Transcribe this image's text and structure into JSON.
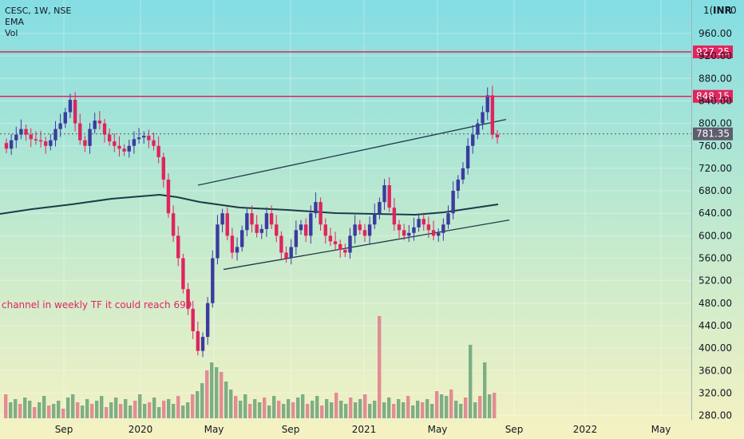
{
  "header": {
    "symbol_line": "CESC, 1W, NSE",
    "ema_label": "EMA",
    "vol_label": "Vol"
  },
  "currency": "INR",
  "currency_top_left": "1(",
  "currency_top_right": "0",
  "annotation": "channel in weekly TF it could reach 699",
  "colors": {
    "up": "#3b3b9f",
    "down": "#e0245e",
    "vol_up": "#6aa27a",
    "vol_down": "#e07a8c",
    "hline": "#e0245e",
    "last_tag": "#5e5e6e",
    "ema": "#1d3a4a",
    "channel": "#1d3a4a"
  },
  "chart_data": {
    "type": "candlestick",
    "timeframe": "1W",
    "exchange": "NSE",
    "y_axis": {
      "ticks": [
        "960.00",
        "920.00",
        "880.00",
        "840.00",
        "800.00",
        "760.00",
        "720.00",
        "680.00",
        "640.00",
        "600.00",
        "560.00",
        "520.00",
        "480.00",
        "440.00",
        "400.00",
        "360.00",
        "320.00",
        "280.00"
      ],
      "range": [
        275,
        1000
      ]
    },
    "x_axis": {
      "ticks": [
        "Sep",
        "2020",
        "May",
        "Sep",
        "2021",
        "May",
        "Sep",
        "2022",
        "May"
      ]
    },
    "horizontal_levels": [
      {
        "label": "927.25",
        "value": 927.25
      },
      {
        "label": "848.15",
        "value": 848.15
      }
    ],
    "last_price": {
      "label": "781.35",
      "value": 781.35
    },
    "channel": {
      "upper": [
        [
          248,
          690
        ],
        [
          634,
          807
        ]
      ],
      "lower": [
        [
          280,
          540
        ],
        [
          638,
          628
        ]
      ]
    }
  }
}
